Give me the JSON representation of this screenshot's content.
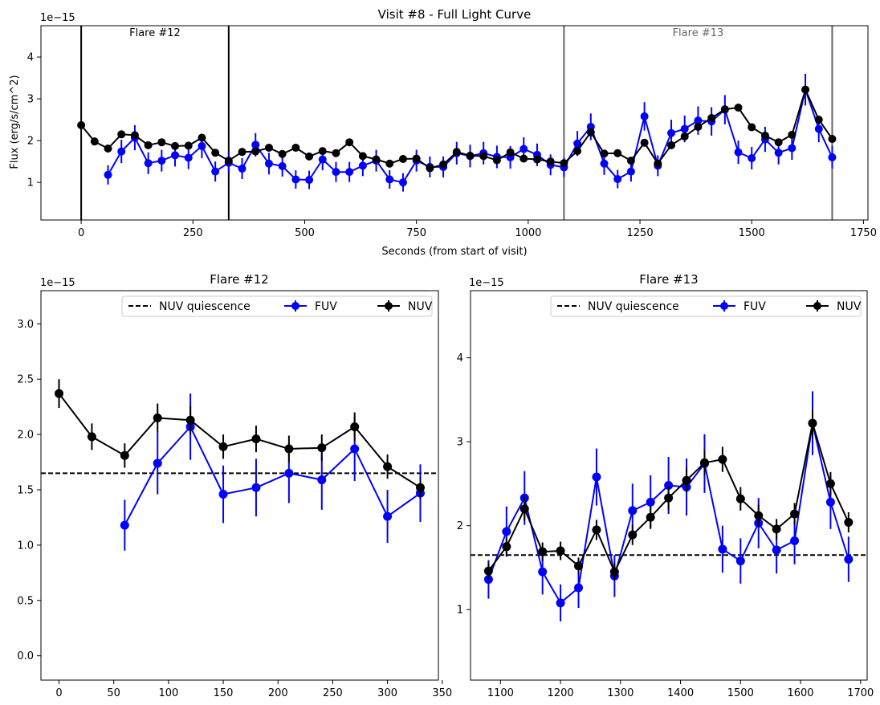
{
  "colors": {
    "fuv": "#0000ff",
    "nuv": "#000000",
    "flare12_marker": "#000000",
    "flare13_marker": "#666666",
    "flare13_label": "#666666"
  },
  "chart_data": [
    {
      "id": "full",
      "type": "line",
      "title": "Visit #8 - Full Light Curve",
      "xlabel": "Seconds (from start of visit)",
      "ylabel": "Flux (erg/s/cm^2)",
      "y_offset_label": "1e−15",
      "xlim": [
        -90,
        1760
      ],
      "ylim": [
        0.1,
        4.75
      ],
      "xticks": [
        0,
        250,
        500,
        750,
        1000,
        1250,
        1500,
        1750
      ],
      "yticks": [
        1,
        2,
        3,
        4
      ],
      "grid": false,
      "legend": "none",
      "vlines": [
        {
          "x": 0,
          "color": "#000000"
        },
        {
          "x": 330,
          "color": "#000000"
        },
        {
          "x": 1080,
          "color": "#666666"
        },
        {
          "x": 1680,
          "color": "#666666"
        }
      ],
      "annotations": [
        {
          "text": "Flare #12",
          "x": 165,
          "color": "#000000"
        },
        {
          "text": "Flare #13",
          "x": 1380,
          "color": "#666666"
        }
      ],
      "series": [
        {
          "name": "FUV",
          "x": [
            60,
            90,
            120,
            150,
            180,
            210,
            240,
            270,
            300,
            330,
            360,
            390,
            420,
            450,
            480,
            510,
            540,
            570,
            600,
            630,
            660,
            690,
            720,
            750,
            780,
            810,
            840,
            870,
            900,
            930,
            960,
            990,
            1020,
            1050,
            1080,
            1110,
            1140,
            1170,
            1200,
            1230,
            1260,
            1290,
            1320,
            1350,
            1380,
            1410,
            1440,
            1470,
            1500,
            1530,
            1560,
            1590,
            1620,
            1650,
            1680
          ],
          "y": [
            1.18,
            1.74,
            2.07,
            1.46,
            1.52,
            1.65,
            1.59,
            1.87,
            1.26,
            1.47,
            1.33,
            1.9,
            1.45,
            1.39,
            1.07,
            1.06,
            1.55,
            1.25,
            1.25,
            1.4,
            1.52,
            1.07,
            1.0,
            1.52,
            1.37,
            1.37,
            1.7,
            1.63,
            1.7,
            1.61,
            1.6,
            1.8,
            1.66,
            1.42,
            1.36,
            1.93,
            2.33,
            1.45,
            1.08,
            1.26,
            2.58,
            1.4,
            2.18,
            2.28,
            2.48,
            2.46,
            2.74,
            1.72,
            1.58,
            2.03,
            1.71,
            1.82,
            3.22,
            2.28,
            1.6
          ],
          "yerr": [
            0.23,
            0.28,
            0.3,
            0.26,
            0.26,
            0.27,
            0.27,
            0.29,
            0.24,
            0.26,
            0.25,
            0.28,
            0.26,
            0.25,
            0.22,
            0.22,
            0.26,
            0.24,
            0.24,
            0.25,
            0.26,
            0.22,
            0.22,
            0.26,
            0.25,
            0.25,
            0.27,
            0.27,
            0.27,
            0.27,
            0.27,
            0.28,
            0.27,
            0.25,
            0.23,
            0.3,
            0.32,
            0.27,
            0.22,
            0.24,
            0.34,
            0.25,
            0.32,
            0.32,
            0.34,
            0.34,
            0.35,
            0.28,
            0.27,
            0.3,
            0.28,
            0.28,
            0.38,
            0.32,
            0.27
          ]
        },
        {
          "name": "NUV",
          "x": [
            0,
            30,
            60,
            90,
            120,
            150,
            180,
            210,
            240,
            270,
            300,
            330,
            360,
            390,
            420,
            450,
            480,
            510,
            540,
            570,
            600,
            630,
            660,
            690,
            720,
            750,
            780,
            810,
            840,
            870,
            900,
            930,
            960,
            990,
            1020,
            1050,
            1080,
            1110,
            1140,
            1170,
            1200,
            1230,
            1260,
            1290,
            1320,
            1350,
            1380,
            1410,
            1440,
            1470,
            1500,
            1530,
            1560,
            1590,
            1620,
            1650,
            1680
          ],
          "y": [
            2.37,
            1.98,
            1.81,
            2.15,
            2.13,
            1.89,
            1.96,
            1.87,
            1.88,
            2.07,
            1.71,
            1.52,
            1.73,
            1.74,
            1.83,
            1.68,
            1.83,
            1.62,
            1.75,
            1.7,
            1.96,
            1.63,
            1.55,
            1.45,
            1.56,
            1.57,
            1.34,
            1.43,
            1.73,
            1.64,
            1.63,
            1.53,
            1.72,
            1.57,
            1.55,
            1.5,
            1.46,
            1.75,
            2.2,
            1.69,
            1.7,
            1.52,
            1.95,
            1.45,
            1.89,
            2.1,
            2.33,
            2.54,
            2.75,
            2.79,
            2.32,
            2.12,
            1.96,
            2.14,
            3.22,
            2.5,
            2.04
          ]
        }
      ]
    },
    {
      "id": "flare12",
      "type": "line",
      "title": "Flare #12",
      "xlabel": "",
      "ylabel": "",
      "y_offset_label": "1e−15",
      "xlim": [
        -16.5,
        346.5
      ],
      "ylim": [
        -0.22,
        3.3
      ],
      "xticks": [
        0,
        50,
        100,
        150,
        200,
        250,
        300,
        350
      ],
      "yticks": [
        "0.0",
        "0.5",
        "1.0",
        "1.5",
        "2.0",
        "2.5",
        "3.0"
      ],
      "grid": false,
      "legend": "top-right",
      "hline": {
        "name": "NUV quiescence",
        "y": 1.65,
        "style": "dashed"
      },
      "series": [
        {
          "name": "FUV",
          "x": [
            60,
            90,
            120,
            150,
            180,
            210,
            240,
            270,
            300,
            330
          ],
          "y": [
            1.18,
            1.74,
            2.07,
            1.46,
            1.52,
            1.65,
            1.59,
            1.87,
            1.26,
            1.47
          ],
          "yerr": [
            0.23,
            0.28,
            0.3,
            0.26,
            0.26,
            0.27,
            0.27,
            0.29,
            0.24,
            0.26
          ]
        },
        {
          "name": "NUV",
          "x": [
            0,
            30,
            60,
            90,
            120,
            150,
            180,
            210,
            240,
            270,
            300,
            330
          ],
          "y": [
            2.37,
            1.98,
            1.81,
            2.15,
            2.13,
            1.89,
            1.96,
            1.87,
            1.88,
            2.07,
            1.71,
            1.52
          ],
          "yerr": [
            0.13,
            0.12,
            0.11,
            0.13,
            0.13,
            0.11,
            0.12,
            0.12,
            0.12,
            0.13,
            0.11,
            0.1
          ]
        }
      ]
    },
    {
      "id": "flare13",
      "type": "line",
      "title": "Flare #13",
      "xlabel": "",
      "ylabel": "",
      "y_offset_label": "1e−15",
      "xlim": [
        1050,
        1711
      ],
      "ylim": [
        0.16,
        4.8
      ],
      "xticks": [
        1100,
        1200,
        1300,
        1400,
        1500,
        1600,
        1700
      ],
      "yticks": [
        "1",
        "2",
        "3",
        "4"
      ],
      "grid": false,
      "legend": "top-right",
      "hline": {
        "name": "NUV quiescence",
        "y": 1.65,
        "style": "dashed"
      },
      "series": [
        {
          "name": "FUV",
          "x": [
            1080,
            1110,
            1140,
            1170,
            1200,
            1230,
            1260,
            1290,
            1320,
            1350,
            1380,
            1410,
            1440,
            1470,
            1500,
            1530,
            1560,
            1590,
            1620,
            1650,
            1680
          ],
          "y": [
            1.36,
            1.93,
            2.33,
            1.45,
            1.08,
            1.26,
            2.58,
            1.4,
            2.18,
            2.28,
            2.48,
            2.46,
            2.74,
            1.72,
            1.58,
            2.03,
            1.71,
            1.82,
            3.22,
            2.28,
            1.6
          ],
          "yerr": [
            0.23,
            0.3,
            0.32,
            0.27,
            0.22,
            0.24,
            0.34,
            0.25,
            0.32,
            0.32,
            0.34,
            0.34,
            0.35,
            0.28,
            0.27,
            0.3,
            0.28,
            0.28,
            0.38,
            0.32,
            0.27
          ]
        },
        {
          "name": "NUV",
          "x": [
            1080,
            1110,
            1140,
            1170,
            1200,
            1230,
            1260,
            1290,
            1320,
            1350,
            1380,
            1410,
            1440,
            1470,
            1500,
            1530,
            1560,
            1590,
            1620,
            1650,
            1680
          ],
          "y": [
            1.46,
            1.75,
            2.2,
            1.69,
            1.7,
            1.52,
            1.95,
            1.45,
            1.89,
            2.1,
            2.33,
            2.54,
            2.75,
            2.79,
            2.32,
            2.12,
            1.96,
            2.14,
            3.22,
            2.5,
            2.04
          ],
          "yerr": [
            0.1,
            0.11,
            0.14,
            0.11,
            0.11,
            0.1,
            0.12,
            0.1,
            0.12,
            0.13,
            0.14,
            0.15,
            0.15,
            0.15,
            0.14,
            0.13,
            0.12,
            0.13,
            0.17,
            0.14,
            0.12
          ]
        }
      ]
    }
  ]
}
